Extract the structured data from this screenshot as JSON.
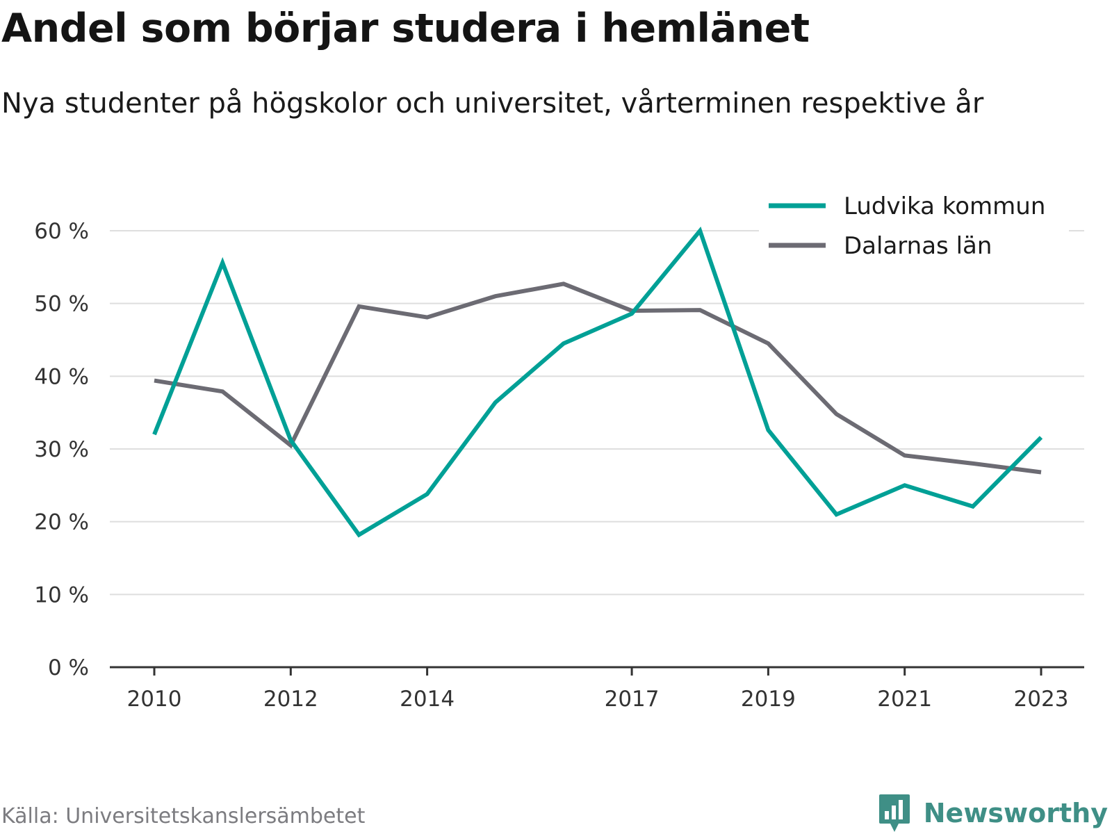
{
  "title": "Andel som börjar studera i hemlänet",
  "subtitle": "Nya studenter på högskolor och universitet, vårterminen respektive år",
  "source": "Källa: Universitetskanslersämbetet",
  "brand": {
    "name": "Newsworthy",
    "icon": "newsworthy-logo-icon",
    "color": "#3f8f86"
  },
  "colors": {
    "grid": "#dedede",
    "axis": "#333333",
    "tick_text": "#333333"
  },
  "chart_data": {
    "type": "line",
    "title": "Andel som börjar studera i hemlänet",
    "subtitle": "Nya studenter på högskolor och universitet, vårterminen respektive år",
    "x": [
      2010,
      2011,
      2012,
      2013,
      2014,
      2015,
      2016,
      2017,
      2018,
      2019,
      2020,
      2021,
      2022,
      2023
    ],
    "x_tick_labels": [
      "2010",
      "2012",
      "2014",
      "2017",
      "2019",
      "2021",
      "2023"
    ],
    "ylim": [
      0,
      60
    ],
    "y_ticks": [
      0,
      10,
      20,
      30,
      40,
      50,
      60
    ],
    "y_tick_labels": [
      "0 %",
      "10 %",
      "20 %",
      "30 %",
      "40 %",
      "50 %",
      "60 %"
    ],
    "grid": true,
    "legend_position": "top-right",
    "series": [
      {
        "name": "Ludvika kommun",
        "color": "#00a096",
        "values": [
          32.0,
          55.6,
          31.2,
          18.2,
          23.8,
          36.4,
          44.5,
          48.6,
          60.0,
          32.6,
          21.0,
          25.0,
          22.1,
          31.6
        ]
      },
      {
        "name": "Dalarnas län",
        "color": "#6c6b73",
        "values": [
          39.4,
          37.9,
          30.5,
          49.6,
          48.1,
          51.0,
          52.7,
          49.0,
          49.1,
          44.5,
          34.8,
          29.1,
          28.0,
          26.8
        ]
      }
    ]
  }
}
